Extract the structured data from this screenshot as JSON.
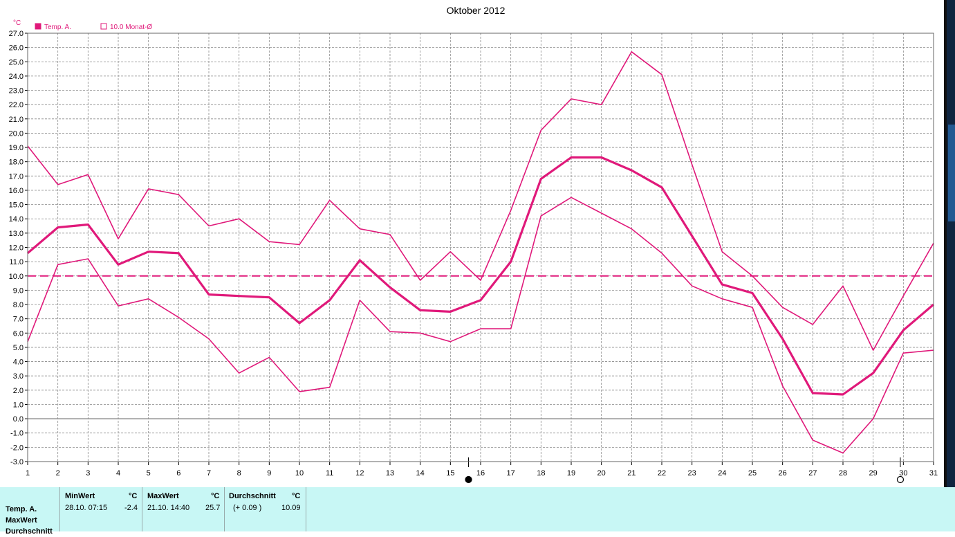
{
  "chart_data": {
    "type": "line",
    "title": "Oktober 2012",
    "unit_label": "°C",
    "legend": [
      {
        "marker": "filled",
        "label": "Temp. A."
      },
      {
        "marker": "hollow",
        "label": "10.0 Monat-Ø"
      }
    ],
    "x": [
      1,
      2,
      3,
      4,
      5,
      6,
      7,
      8,
      9,
      10,
      11,
      12,
      13,
      14,
      15,
      16,
      17,
      18,
      19,
      20,
      21,
      22,
      23,
      24,
      25,
      26,
      27,
      28,
      29,
      30,
      31
    ],
    "xlim": [
      1,
      31
    ],
    "ylim": [
      -3.0,
      27.0
    ],
    "yticks": [
      "27.0",
      "26.0",
      "25.0",
      "24.0",
      "23.0",
      "22.0",
      "21.0",
      "20.0",
      "19.0",
      "18.0",
      "17.0",
      "16.0",
      "15.0",
      "14.0",
      "13.0",
      "12.0",
      "11.0",
      "10.0",
      "9.0",
      "8.0",
      "7.0",
      "6.0",
      "5.0",
      "4.0",
      "3.0",
      "2.0",
      "1.0",
      "0.0",
      "-1.0",
      "-2.0",
      "-3.0"
    ],
    "grid": true,
    "legend_position": "top-left",
    "series": [
      {
        "role": "max",
        "values": [
          19.1,
          16.4,
          17.1,
          12.6,
          16.1,
          15.7,
          13.5,
          14.0,
          12.4,
          12.2,
          15.3,
          13.3,
          12.9,
          9.7,
          11.7,
          9.7,
          14.6,
          20.2,
          22.4,
          22.0,
          25.7,
          24.1,
          17.8,
          11.7,
          10.0,
          7.8,
          6.6,
          9.3,
          4.8,
          8.6,
          12.3
        ],
        "color": "#e0197a",
        "width": 1.6
      },
      {
        "role": "mean",
        "values": [
          11.6,
          13.4,
          13.6,
          10.8,
          11.7,
          11.6,
          8.7,
          8.6,
          8.5,
          6.7,
          8.3,
          11.1,
          9.2,
          7.6,
          7.5,
          8.3,
          11.0,
          16.8,
          18.3,
          18.3,
          17.4,
          16.2,
          12.8,
          9.4,
          8.8,
          5.6,
          1.8,
          1.7,
          3.2,
          6.2,
          8.0
        ],
        "color": "#e0197a",
        "width": 3.2
      },
      {
        "role": "min",
        "values": [
          5.4,
          10.8,
          11.2,
          7.9,
          8.4,
          7.1,
          5.6,
          3.2,
          4.3,
          1.9,
          2.2,
          8.3,
          6.1,
          6.0,
          5.4,
          6.3,
          6.3,
          14.2,
          15.5,
          14.4,
          13.3,
          11.6,
          9.3,
          8.4,
          7.8,
          2.3,
          -1.5,
          -2.4,
          0.0,
          4.6,
          4.8
        ],
        "color": "#e0197a",
        "width": 1.6
      }
    ],
    "reference_line": {
      "value": 10.0,
      "style": "dashed",
      "color": "#e0197a"
    },
    "moon_markers": [
      {
        "x": 15.6,
        "phase": "new"
      },
      {
        "x": 29.9,
        "phase": "full"
      }
    ]
  },
  "stats": {
    "row_labels": [
      "Temp. A.",
      "MaxWert",
      "Durchschnitt"
    ],
    "min": {
      "header": "MinWert",
      "unit": "°C",
      "datetime": "28.10.  07:15",
      "value": "-2.4"
    },
    "max": {
      "header": "MaxWert",
      "unit": "°C",
      "datetime": "21.10.  14:40",
      "value": "25.7"
    },
    "avg": {
      "header": "Durchschnitt",
      "unit": "°C",
      "delta": "(+ 0.09 )",
      "value": "10.09"
    }
  }
}
